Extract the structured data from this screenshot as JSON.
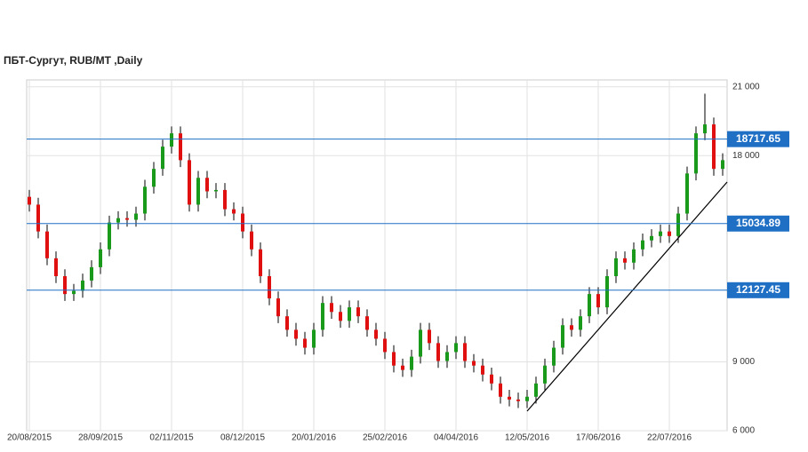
{
  "chart_data": {
    "type": "candlestick",
    "title": "ПБТ-Сургут,  RUB/MT ,Daily",
    "categories": [
      "20/08/2015",
      null,
      null,
      null,
      null,
      null,
      null,
      null,
      "28/09/2015",
      null,
      null,
      null,
      null,
      null,
      null,
      null,
      "02/11/2015",
      null,
      null,
      null,
      null,
      null,
      null,
      null,
      "08/12/2015",
      null,
      null,
      null,
      null,
      null,
      null,
      null,
      "20/01/2016",
      null,
      null,
      null,
      null,
      null,
      null,
      null,
      "25/02/2016",
      null,
      null,
      null,
      null,
      null,
      null,
      null,
      "04/04/2016",
      null,
      null,
      null,
      null,
      null,
      null,
      null,
      "12/05/2016",
      null,
      null,
      null,
      null,
      null,
      null,
      null,
      "17/06/2016",
      null,
      null,
      null,
      null,
      null,
      null,
      null,
      "22/07/2016",
      null,
      null,
      null,
      null,
      null,
      null
    ],
    "open": [
      16200,
      15860,
      14690,
      13520,
      12740,
      11960,
      12100,
      12550,
      13130,
      13910,
      15080,
      15270,
      15200,
      15470,
      16640,
      17420,
      18390,
      18970,
      17800,
      15860,
      17030,
      16440,
      16500,
      15660,
      15470,
      14690,
      13910,
      12740,
      11770,
      10990,
      10400,
      10010,
      9620,
      10400,
      11570,
      11180,
      10790,
      11380,
      10990,
      10400,
      10010,
      9430,
      8840,
      8650,
      9230,
      10400,
      9820,
      9040,
      9430,
      9820,
      9040,
      8840,
      8450,
      8060,
      7480,
      7360,
      7290,
      7480,
      8060,
      8840,
      9620,
      10600,
      10400,
      10990,
      11960,
      11380,
      12740,
      13520,
      13330,
      13910,
      14300,
      14490,
      14690,
      14490,
      15470,
      17220,
      18970,
      19360,
      17420
    ],
    "high": [
      16500,
      16160,
      14990,
      13820,
      13040,
      12400,
      12850,
      13430,
      14210,
      15380,
      15570,
      15570,
      15770,
      16940,
      17720,
      18690,
      19270,
      19270,
      18100,
      17330,
      17330,
      16800,
      16800,
      15960,
      15770,
      14990,
      14210,
      13040,
      12070,
      11290,
      10700,
      10310,
      10700,
      11870,
      11870,
      11480,
      11680,
      11680,
      11290,
      10700,
      10310,
      9730,
      9140,
      9530,
      10700,
      10700,
      10120,
      9730,
      10120,
      10120,
      9340,
      9140,
      8750,
      8360,
      7780,
      7660,
      7780,
      8360,
      9140,
      9920,
      10900,
      10900,
      11290,
      12260,
      12260,
      13040,
      13820,
      13820,
      14210,
      14600,
      14790,
      14990,
      14990,
      15770,
      17520,
      19270,
      20700,
      19660,
      18100
    ],
    "low": [
      15560,
      14390,
      13220,
      12440,
      11660,
      11660,
      11800,
      12250,
      12830,
      13610,
      14780,
      14900,
      14900,
      15170,
      16340,
      17120,
      18090,
      17500,
      15560,
      15560,
      16140,
      16140,
      15360,
      15170,
      14390,
      13610,
      12440,
      11470,
      10690,
      10100,
      9710,
      9320,
      9320,
      10100,
      10880,
      10490,
      10490,
      10690,
      10100,
      9710,
      9130,
      8540,
      8350,
      8350,
      8930,
      9520,
      8740,
      8740,
      9130,
      8740,
      8540,
      8150,
      7760,
      7180,
      7060,
      6990,
      6990,
      7180,
      7760,
      8540,
      9320,
      10100,
      10100,
      10690,
      11080,
      11080,
      12440,
      13030,
      13030,
      13610,
      14000,
      14190,
      14190,
      14190,
      15170,
      16920,
      18670,
      17120,
      17120
    ],
    "close": [
      15860,
      14690,
      13520,
      12740,
      11960,
      12100,
      12550,
      13130,
      13910,
      15080,
      15270,
      15200,
      15470,
      16640,
      17420,
      18390,
      18970,
      17800,
      15860,
      17030,
      16440,
      16500,
      15660,
      15470,
      14690,
      13910,
      12740,
      11770,
      10990,
      10400,
      10010,
      9620,
      10400,
      11570,
      11180,
      10790,
      11380,
      10990,
      10400,
      10010,
      9430,
      8840,
      8650,
      9230,
      10400,
      9820,
      9040,
      9430,
      9820,
      9040,
      8840,
      8450,
      8060,
      7480,
      7360,
      7290,
      7480,
      8060,
      8840,
      9620,
      10600,
      10400,
      10990,
      11960,
      11380,
      12740,
      13520,
      13330,
      13910,
      14300,
      14490,
      14690,
      14490,
      15470,
      17220,
      18970,
      19360,
      17420,
      17800
    ],
    "up_color": "#1a9a1a",
    "down_color": "#e01010",
    "levels": [
      18717.65,
      15034.89,
      12127.45
    ],
    "level_color": "#1f6fc5",
    "ylim": [
      6000,
      21300
    ],
    "yticks": [
      {
        "value": 21000,
        "label": "21 000"
      },
      {
        "value": 18000,
        "label": "18 000"
      },
      {
        "value": 9000,
        "label": "9 000"
      },
      {
        "value": 6000,
        "label": "6 000"
      }
    ],
    "grid": true
  }
}
